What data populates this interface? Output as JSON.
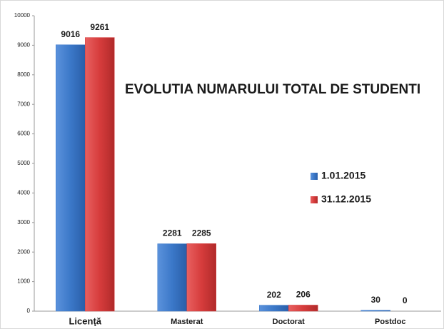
{
  "chart_data": {
    "type": "bar",
    "title": "EVOLUTIA NUMARULUI TOTAL DE STUDENTI",
    "categories": [
      "Licenţă",
      "Masterat",
      "Doctorat",
      "Postdoc"
    ],
    "series": [
      {
        "name": "1.01.2015",
        "color": "#3b78c8",
        "values": [
          9016,
          2281,
          202,
          30
        ]
      },
      {
        "name": "31.12.2015",
        "color": "#d63c3c",
        "values": [
          9261,
          2285,
          206,
          0
        ]
      }
    ],
    "ylim": [
      0,
      10000
    ],
    "yticks": [
      0,
      1000,
      2000,
      3000,
      4000,
      5000,
      6000,
      7000,
      8000,
      9000,
      10000
    ],
    "legend": "right"
  }
}
